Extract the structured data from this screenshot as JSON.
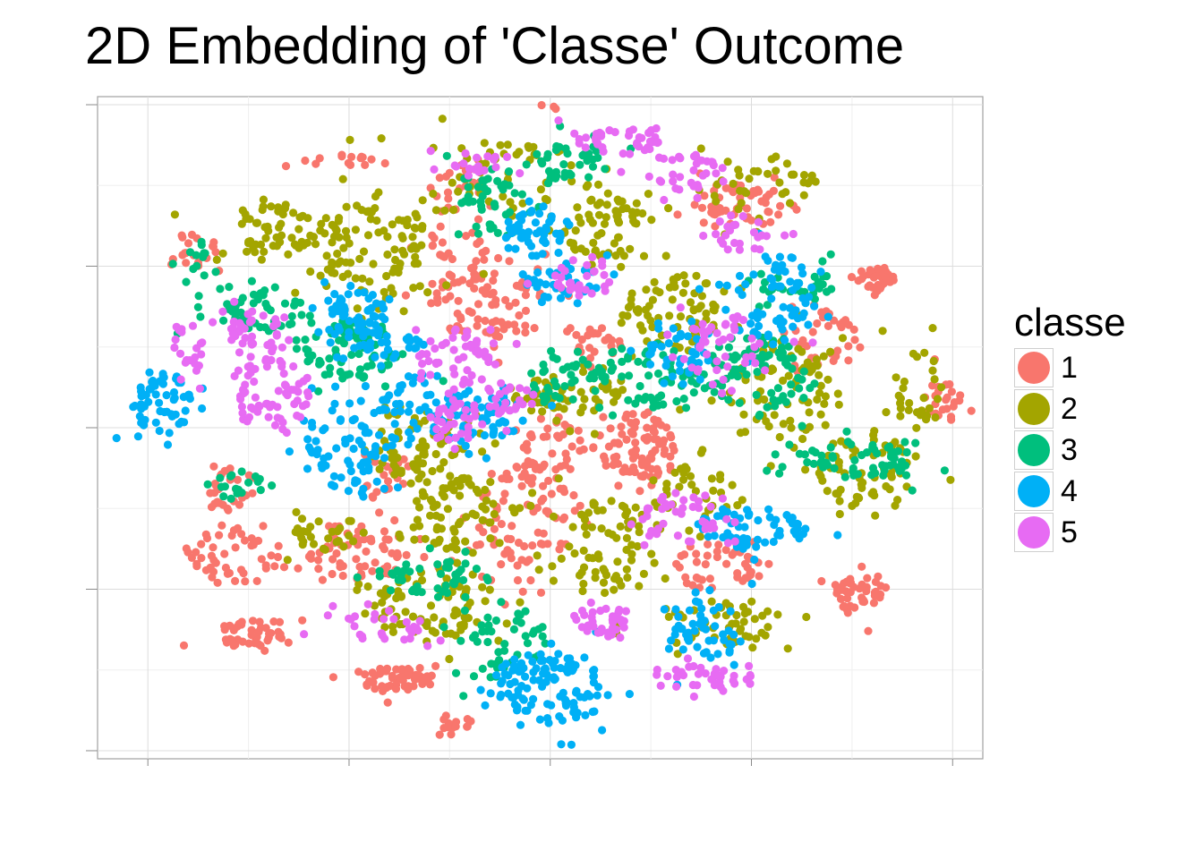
{
  "chart_data": {
    "type": "scatter",
    "title": "2D Embedding of 'Classe' Outcome",
    "xlabel": "",
    "ylabel": "",
    "grid": true,
    "legend": {
      "title": "classe",
      "placement": "right",
      "entries": [
        {
          "label": "1",
          "color": "#F8766D"
        },
        {
          "label": "2",
          "color": "#A3A500"
        },
        {
          "label": "3",
          "color": "#00BF7D"
        },
        {
          "label": "4",
          "color": "#00B0F6"
        },
        {
          "label": "5",
          "color": "#E76BF3"
        }
      ]
    },
    "xlim": [
      -45,
      43
    ],
    "ylim": [
      -41,
      41
    ],
    "x_major_ticks": [
      -40,
      -20,
      0,
      20,
      40
    ],
    "y_major_ticks": [
      -40,
      -20,
      0,
      20,
      40
    ],
    "note_density": "dense 2D embedding point cloud; points summarised as cluster centres with spread",
    "clusters": [
      {
        "class": "1",
        "x": 0,
        "y": 40.5,
        "sx": 0.8,
        "sy": 0.7,
        "n": 10
      },
      {
        "class": "1",
        "x": 32.5,
        "y": 18.5,
        "sx": 1.2,
        "sy": 0.9,
        "n": 40
      },
      {
        "class": "1",
        "x": 38.5,
        "y": 3.5,
        "sx": 1.2,
        "sy": 1.6,
        "n": 25
      },
      {
        "class": "1",
        "x": 30.5,
        "y": -20.5,
        "sx": 1.6,
        "sy": 1.6,
        "n": 45
      },
      {
        "class": "1",
        "x": -29.5,
        "y": -25.5,
        "sx": 2.6,
        "sy": 1.2,
        "n": 45
      },
      {
        "class": "1",
        "x": -15.5,
        "y": -31.0,
        "sx": 2.4,
        "sy": 1.0,
        "n": 60
      },
      {
        "class": "1",
        "x": -9.5,
        "y": -36.5,
        "sx": 1.0,
        "sy": 0.8,
        "n": 15
      },
      {
        "class": "1",
        "x": -31.0,
        "y": -15.5,
        "sx": 3.5,
        "sy": 2.4,
        "n": 50
      },
      {
        "class": "1",
        "x": -19.5,
        "y": -15.5,
        "sx": 3.5,
        "sy": 2.2,
        "n": 70
      },
      {
        "class": "1",
        "x": -32.0,
        "y": -8.0,
        "sx": 1.4,
        "sy": 1.8,
        "n": 25
      },
      {
        "class": "1",
        "x": 8.5,
        "y": -2.5,
        "sx": 2.6,
        "sy": 2.6,
        "n": 90
      },
      {
        "class": "1",
        "x": -2.5,
        "y": -11.0,
        "sx": 3.2,
        "sy": 5.0,
        "n": 90
      },
      {
        "class": "1",
        "x": 0.0,
        "y": -2.0,
        "sx": 2.0,
        "sy": 3.0,
        "n": 40
      },
      {
        "class": "1",
        "x": -6.5,
        "y": 15.5,
        "sx": 3.2,
        "sy": 3.2,
        "n": 80
      },
      {
        "class": "1",
        "x": -9.0,
        "y": 24.5,
        "sx": 1.8,
        "sy": 6.0,
        "n": 55
      },
      {
        "class": "1",
        "x": 18.5,
        "y": 28.0,
        "sx": 3.0,
        "sy": 1.8,
        "n": 55
      },
      {
        "class": "1",
        "x": 17.0,
        "y": -17.0,
        "sx": 3.0,
        "sy": 2.0,
        "n": 45
      },
      {
        "class": "1",
        "x": -20.5,
        "y": 33.0,
        "sx": 3.0,
        "sy": 0.6,
        "n": 15
      },
      {
        "class": "1",
        "x": 27.5,
        "y": 11.0,
        "sx": 2.2,
        "sy": 2.8,
        "n": 35
      },
      {
        "class": "1",
        "x": -35.0,
        "y": 22.0,
        "sx": 1.5,
        "sy": 1.5,
        "n": 20
      },
      {
        "class": "1",
        "x": 4.5,
        "y": 10.0,
        "sx": 1.6,
        "sy": 1.8,
        "n": 25
      },
      {
        "class": "1",
        "x": -17.0,
        "y": -6.0,
        "sx": 1.4,
        "sy": 1.6,
        "n": 20
      },
      {
        "class": "2",
        "x": -27.0,
        "y": 24.5,
        "sx": 3.0,
        "sy": 2.6,
        "n": 60
      },
      {
        "class": "2",
        "x": -17.5,
        "y": 22.0,
        "sx": 3.5,
        "sy": 4.0,
        "n": 110
      },
      {
        "class": "2",
        "x": 5.5,
        "y": 24.5,
        "sx": 3.0,
        "sy": 3.0,
        "n": 70
      },
      {
        "class": "2",
        "x": 12.5,
        "y": 14.5,
        "sx": 3.0,
        "sy": 3.2,
        "n": 70
      },
      {
        "class": "2",
        "x": 2.5,
        "y": 4.5,
        "sx": 3.0,
        "sy": 2.0,
        "n": 55
      },
      {
        "class": "2",
        "x": -13.0,
        "y": -2.5,
        "sx": 3.0,
        "sy": 3.0,
        "n": 70
      },
      {
        "class": "2",
        "x": -9.0,
        "y": -10.5,
        "sx": 3.2,
        "sy": 3.0,
        "n": 80
      },
      {
        "class": "2",
        "x": 6.0,
        "y": -14.5,
        "sx": 3.0,
        "sy": 4.0,
        "n": 80
      },
      {
        "class": "2",
        "x": -12.0,
        "y": -22.5,
        "sx": 4.0,
        "sy": 2.5,
        "n": 80
      },
      {
        "class": "2",
        "x": 23.5,
        "y": 4.5,
        "sx": 3.5,
        "sy": 4.0,
        "n": 80
      },
      {
        "class": "2",
        "x": 31.0,
        "y": -5.0,
        "sx": 3.0,
        "sy": 3.0,
        "n": 70
      },
      {
        "class": "2",
        "x": 17.0,
        "y": -24.0,
        "sx": 4.0,
        "sy": 2.0,
        "n": 50
      },
      {
        "class": "2",
        "x": -4.0,
        "y": 31.0,
        "sx": 5.0,
        "sy": 3.0,
        "n": 60
      },
      {
        "class": "2",
        "x": 21.0,
        "y": 30.0,
        "sx": 3.0,
        "sy": 2.5,
        "n": 40
      },
      {
        "class": "2",
        "x": 14.5,
        "y": -8.5,
        "sx": 2.4,
        "sy": 2.4,
        "n": 35
      },
      {
        "class": "2",
        "x": -22.5,
        "y": -13.0,
        "sx": 2.4,
        "sy": 1.6,
        "n": 30
      },
      {
        "class": "2",
        "x": 36.5,
        "y": 5.0,
        "sx": 1.4,
        "sy": 3.5,
        "n": 30
      },
      {
        "class": "3",
        "x": -28.0,
        "y": 14.5,
        "sx": 3.2,
        "sy": 1.6,
        "n": 50
      },
      {
        "class": "3",
        "x": -20.5,
        "y": 9.5,
        "sx": 3.2,
        "sy": 2.6,
        "n": 75
      },
      {
        "class": "3",
        "x": 1.5,
        "y": 33.0,
        "sx": 2.8,
        "sy": 1.6,
        "n": 40
      },
      {
        "class": "3",
        "x": -6.0,
        "y": 28.0,
        "sx": 2.4,
        "sy": 2.4,
        "n": 45
      },
      {
        "class": "3",
        "x": 9.5,
        "y": 6.0,
        "sx": 4.0,
        "sy": 2.6,
        "n": 75
      },
      {
        "class": "3",
        "x": 20.5,
        "y": 6.5,
        "sx": 3.2,
        "sy": 3.2,
        "n": 75
      },
      {
        "class": "3",
        "x": 31.0,
        "y": -4.0,
        "sx": 4.0,
        "sy": 1.6,
        "n": 65
      },
      {
        "class": "3",
        "x": -5.0,
        "y": -27.0,
        "sx": 2.6,
        "sy": 2.6,
        "n": 50
      },
      {
        "class": "3",
        "x": -12.0,
        "y": -18.5,
        "sx": 3.2,
        "sy": 1.6,
        "n": 45
      },
      {
        "class": "3",
        "x": 0.5,
        "y": 6.0,
        "sx": 1.8,
        "sy": 1.8,
        "n": 30
      },
      {
        "class": "3",
        "x": -31.0,
        "y": -7.0,
        "sx": 2.0,
        "sy": 1.2,
        "n": 20
      },
      {
        "class": "3",
        "x": -35.0,
        "y": 20.0,
        "sx": 1.0,
        "sy": 1.8,
        "n": 15
      },
      {
        "class": "3",
        "x": 24.5,
        "y": 18.0,
        "sx": 2.6,
        "sy": 1.6,
        "n": 30
      },
      {
        "class": "4",
        "x": -38.5,
        "y": 3.0,
        "sx": 2.0,
        "sy": 2.6,
        "n": 60
      },
      {
        "class": "4",
        "x": -19.0,
        "y": 15.0,
        "sx": 2.2,
        "sy": 2.2,
        "n": 55
      },
      {
        "class": "4",
        "x": -20.5,
        "y": -2.5,
        "sx": 2.8,
        "sy": 3.5,
        "n": 75
      },
      {
        "class": "4",
        "x": -13.0,
        "y": 2.5,
        "sx": 2.6,
        "sy": 2.6,
        "n": 55
      },
      {
        "class": "4",
        "x": -6.5,
        "y": 1.5,
        "sx": 2.4,
        "sy": 2.4,
        "n": 50
      },
      {
        "class": "4",
        "x": -1.5,
        "y": 24.5,
        "sx": 1.8,
        "sy": 2.0,
        "n": 50
      },
      {
        "class": "4",
        "x": 1.5,
        "y": 18.0,
        "sx": 2.4,
        "sy": 1.6,
        "n": 35
      },
      {
        "class": "4",
        "x": 22.5,
        "y": 16.0,
        "sx": 2.8,
        "sy": 3.2,
        "n": 70
      },
      {
        "class": "4",
        "x": 20.0,
        "y": -12.5,
        "sx": 4.0,
        "sy": 1.6,
        "n": 60
      },
      {
        "class": "4",
        "x": 15.5,
        "y": -24.5,
        "sx": 2.4,
        "sy": 2.6,
        "n": 55
      },
      {
        "class": "4",
        "x": 0.0,
        "y": -32.0,
        "sx": 3.6,
        "sy": 3.0,
        "n": 120
      },
      {
        "class": "4",
        "x": -16.5,
        "y": 10.5,
        "sx": 2.6,
        "sy": 1.2,
        "n": 30
      },
      {
        "class": "4",
        "x": 12.5,
        "y": 9.0,
        "sx": 2.4,
        "sy": 2.4,
        "n": 40
      },
      {
        "class": "5",
        "x": -27.5,
        "y": 4.5,
        "sx": 2.6,
        "sy": 2.6,
        "n": 70
      },
      {
        "class": "5",
        "x": -29.0,
        "y": 12.0,
        "sx": 2.2,
        "sy": 1.6,
        "n": 40
      },
      {
        "class": "5",
        "x": -9.5,
        "y": 8.5,
        "sx": 2.4,
        "sy": 2.4,
        "n": 55
      },
      {
        "class": "5",
        "x": -9.5,
        "y": 0.5,
        "sx": 1.6,
        "sy": 2.0,
        "n": 35
      },
      {
        "class": "5",
        "x": 7.0,
        "y": 35.5,
        "sx": 3.0,
        "sy": 1.0,
        "n": 40
      },
      {
        "class": "5",
        "x": 13.5,
        "y": 31.5,
        "sx": 2.4,
        "sy": 1.6,
        "n": 35
      },
      {
        "class": "5",
        "x": 3.0,
        "y": 18.5,
        "sx": 2.0,
        "sy": 1.6,
        "n": 30
      },
      {
        "class": "5",
        "x": 17.0,
        "y": 10.0,
        "sx": 2.4,
        "sy": 2.8,
        "n": 50
      },
      {
        "class": "5",
        "x": 5.5,
        "y": -24.0,
        "sx": 1.4,
        "sy": 1.4,
        "n": 35
      },
      {
        "class": "5",
        "x": 13.0,
        "y": -11.0,
        "sx": 2.6,
        "sy": 2.0,
        "n": 45
      },
      {
        "class": "5",
        "x": 15.5,
        "y": -31.0,
        "sx": 3.5,
        "sy": 1.0,
        "n": 40
      },
      {
        "class": "5",
        "x": -16.0,
        "y": -24.5,
        "sx": 3.0,
        "sy": 1.4,
        "n": 30
      },
      {
        "class": "5",
        "x": -3.5,
        "y": 3.5,
        "sx": 1.6,
        "sy": 1.6,
        "n": 25
      },
      {
        "class": "5",
        "x": -36.0,
        "y": 10.0,
        "sx": 1.2,
        "sy": 2.4,
        "n": 20
      },
      {
        "class": "5",
        "x": 19.0,
        "y": 24.0,
        "sx": 1.8,
        "sy": 1.4,
        "n": 25
      },
      {
        "class": "5",
        "x": -7.5,
        "y": 33.0,
        "sx": 2.4,
        "sy": 0.8,
        "n": 20
      }
    ]
  }
}
